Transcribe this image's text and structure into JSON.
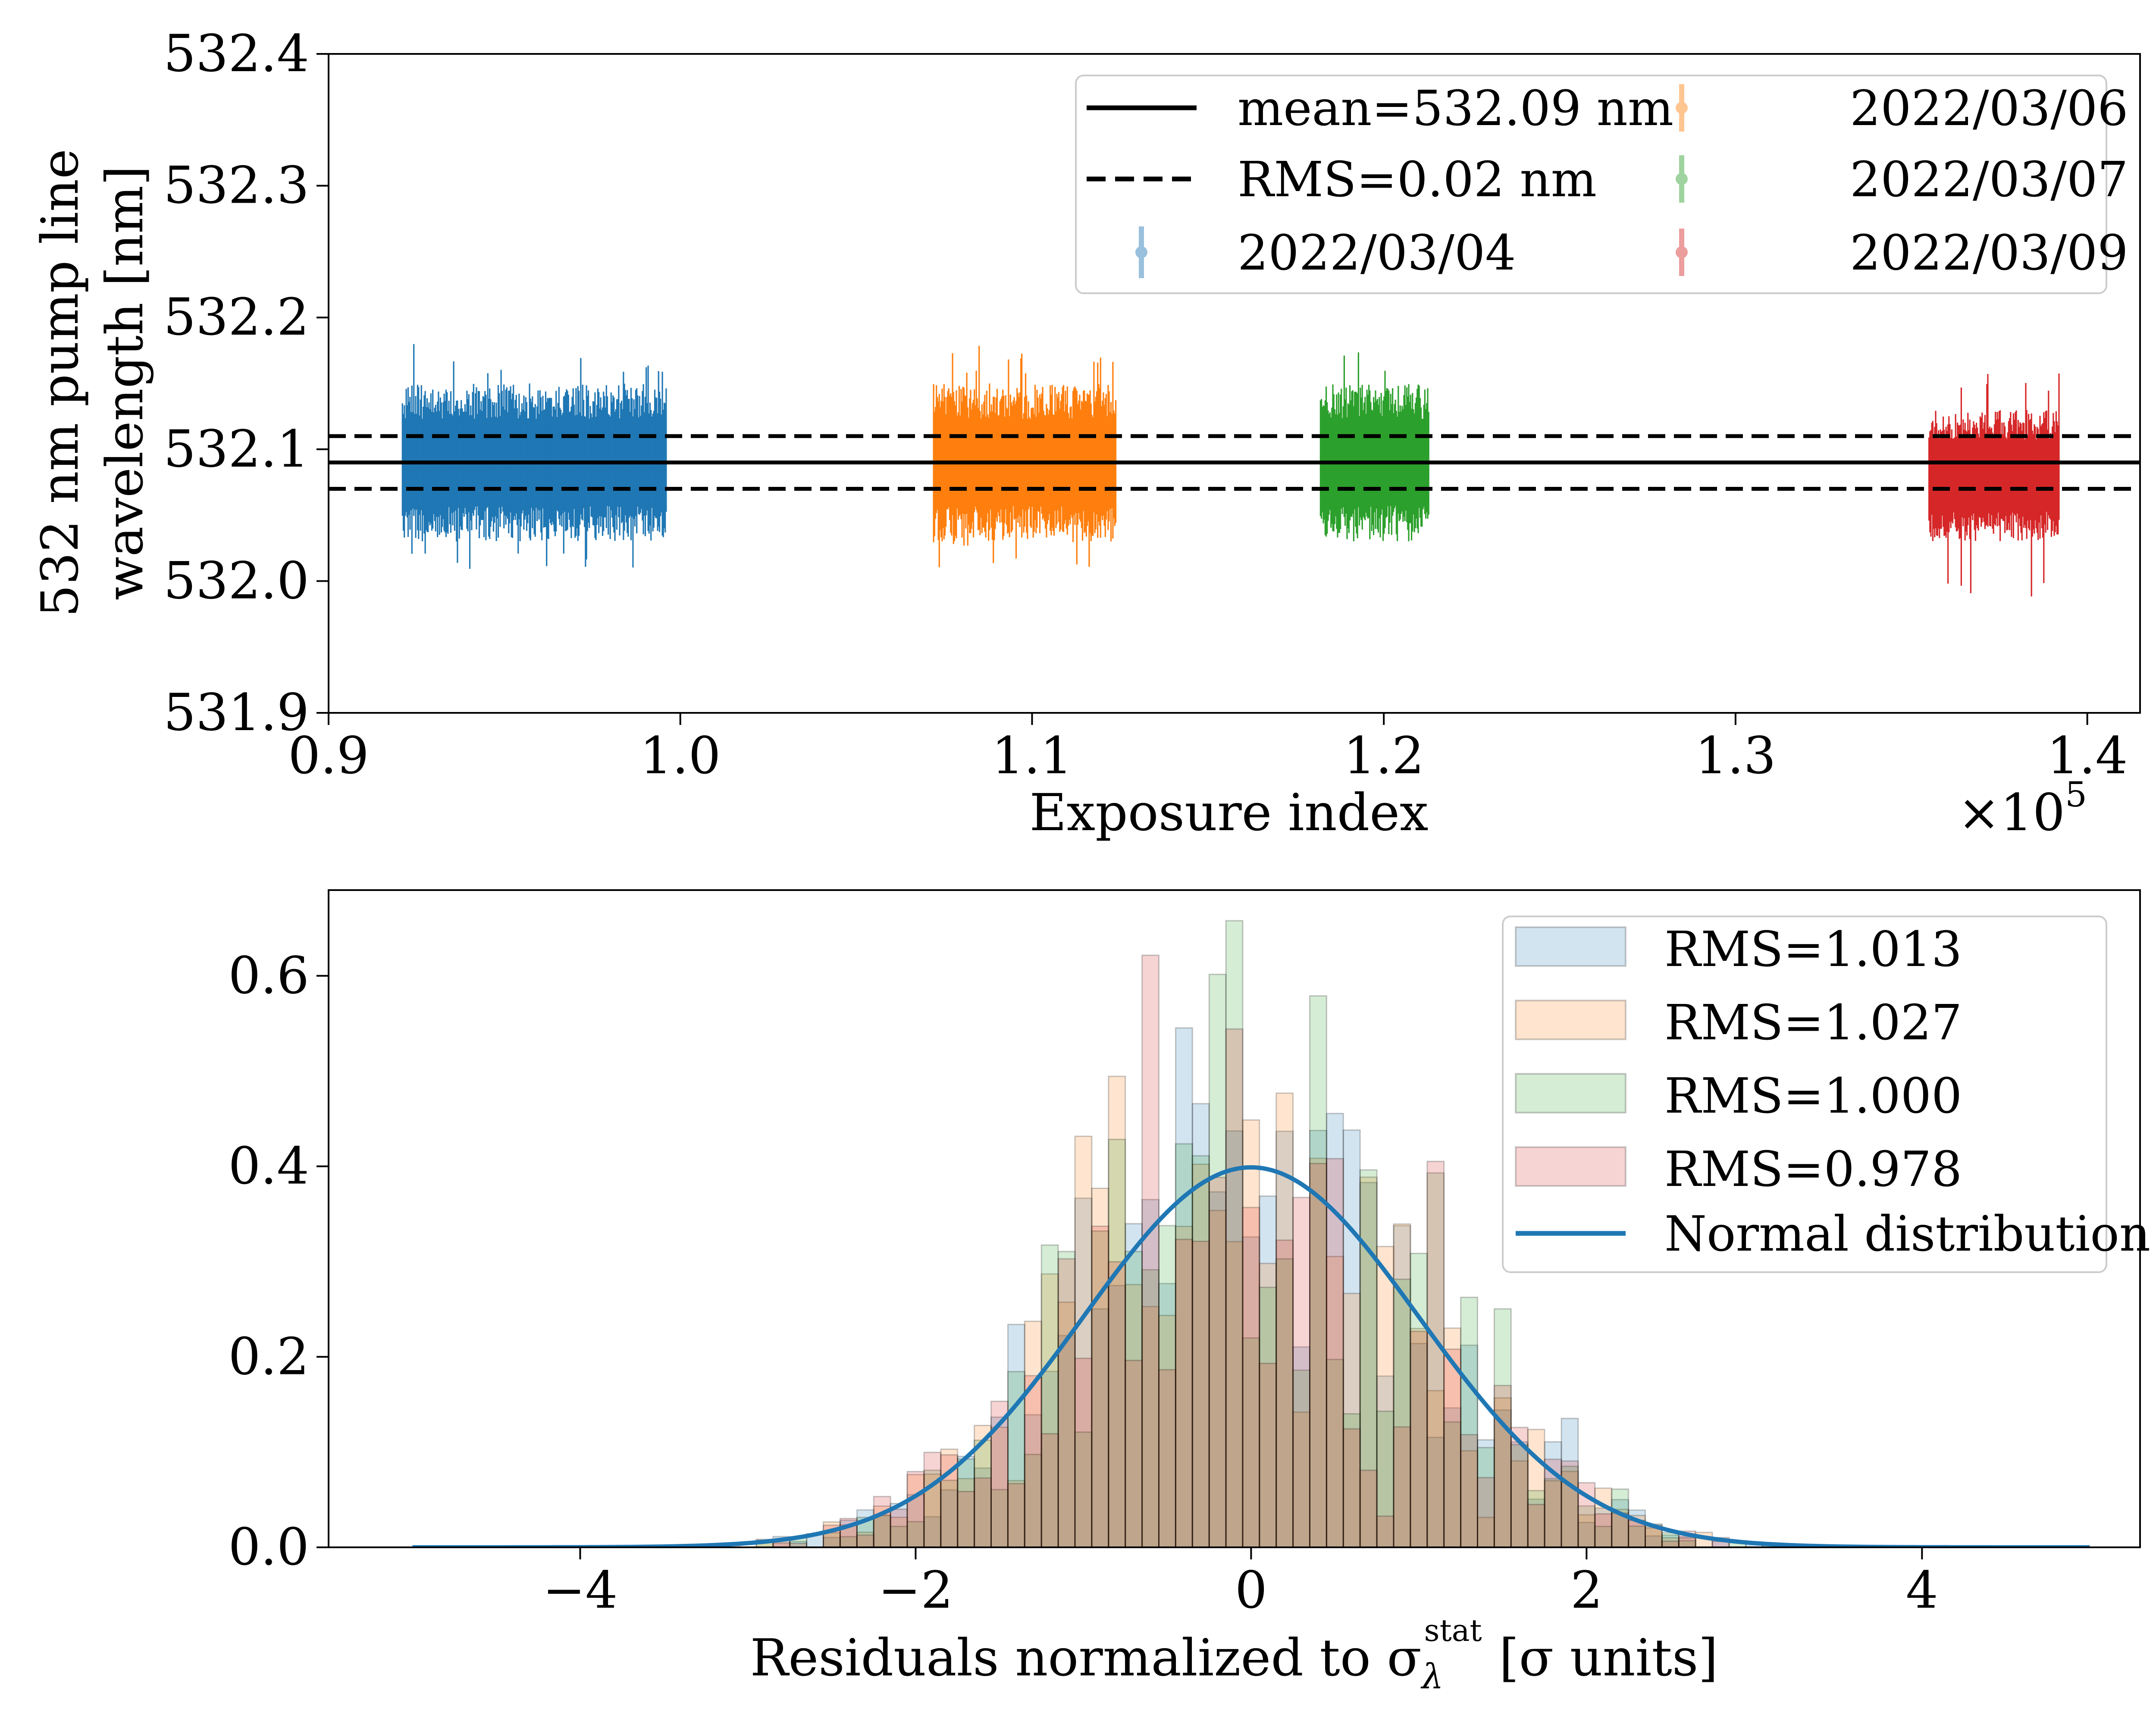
{
  "chart_data": [
    {
      "type": "scatter",
      "subtype": "errorbar",
      "xlabel": "Exposure index",
      "ylabel_lines": [
        "532 nm pump line",
        "wavelength [nm]"
      ],
      "x_offset_label": "×10",
      "x_offset_exponent": "5",
      "xlim": [
        0.9,
        1.415
      ],
      "ylim": [
        531.9,
        532.4
      ],
      "xticks": [
        0.9,
        1.0,
        1.1,
        1.2,
        1.3,
        1.4
      ],
      "xtick_labels": [
        "0.9",
        "1.0",
        "1.1",
        "1.2",
        "1.3",
        "1.4"
      ],
      "yticks": [
        531.9,
        532.0,
        532.1,
        532.2,
        532.3,
        532.4
      ],
      "ytick_labels": [
        "531.9",
        "532.0",
        "532.1",
        "532.2",
        "532.3",
        "532.4"
      ],
      "grid": false,
      "legend_position": "upper right",
      "reference_lines": [
        {
          "label": "mean=532.09 nm",
          "y": 532.09,
          "style": "solid"
        },
        {
          "label": "RMS=0.02 nm",
          "y": [
            532.07,
            532.11
          ],
          "style": "dashed"
        }
      ],
      "series": [
        {
          "name": "2022/03/04",
          "color": "#1f77b4",
          "x_range": [
            0.921,
            0.996
          ],
          "y_mean": 532.09,
          "y_band": [
            532.03,
            532.15
          ],
          "y_extremes": [
            532.0,
            532.18
          ]
        },
        {
          "name": "2022/03/06",
          "color": "#ff7f0e",
          "x_range": [
            1.072,
            1.124
          ],
          "y_mean": 532.09,
          "y_band": [
            532.03,
            532.15
          ],
          "y_extremes": [
            532.01,
            532.18
          ]
        },
        {
          "name": "2022/03/07",
          "color": "#2ca02c",
          "x_range": [
            1.182,
            1.213
          ],
          "y_mean": 532.09,
          "y_band": [
            532.03,
            532.15
          ],
          "y_extremes": [
            532.03,
            532.18
          ]
        },
        {
          "name": "2022/03/09",
          "color": "#d62728",
          "x_range": [
            1.355,
            1.392
          ],
          "y_mean": 532.08,
          "y_band": [
            532.03,
            532.13
          ],
          "y_extremes": [
            531.98,
            532.16
          ]
        }
      ]
    },
    {
      "type": "bar",
      "subtype": "histogram",
      "xlabel": "Residuals normalized to σ",
      "xlabel_sub": "λ",
      "xlabel_sup": "stat",
      "xlabel_suffix": "[σ units]",
      "xlim": [
        -5.5,
        5.3
      ],
      "ylim": [
        0,
        0.69
      ],
      "xticks": [
        -4,
        -2,
        0,
        2,
        4
      ],
      "xtick_labels": [
        "−4",
        "−2",
        "0",
        "2",
        "4"
      ],
      "yticks": [
        0.0,
        0.2,
        0.4,
        0.6
      ],
      "ytick_labels": [
        "0.0",
        "0.2",
        "0.4",
        "0.6"
      ],
      "grid": false,
      "legend_position": "upper right",
      "bin_width": 0.1,
      "series": [
        {
          "name": "RMS=1.013",
          "color": "#1f77b4",
          "alpha": 0.2,
          "rms": 1.013,
          "seed": 11,
          "jitter": 0.28
        },
        {
          "name": "RMS=1.027",
          "color": "#ff7f0e",
          "alpha": 0.2,
          "rms": 1.027,
          "seed": 23,
          "jitter": 0.32
        },
        {
          "name": "RMS=1.000",
          "color": "#2ca02c",
          "alpha": 0.2,
          "rms": 1.0,
          "seed": 37,
          "jitter": 0.55
        },
        {
          "name": "RMS=0.978",
          "color": "#d62728",
          "alpha": 0.2,
          "rms": 0.978,
          "seed": 53,
          "jitter": 0.45
        }
      ],
      "curve": {
        "name": "Normal distribution",
        "color": "#1f77b4",
        "mean": 0,
        "sigma": 1,
        "x_range": [
          -5,
          5
        ]
      }
    }
  ]
}
